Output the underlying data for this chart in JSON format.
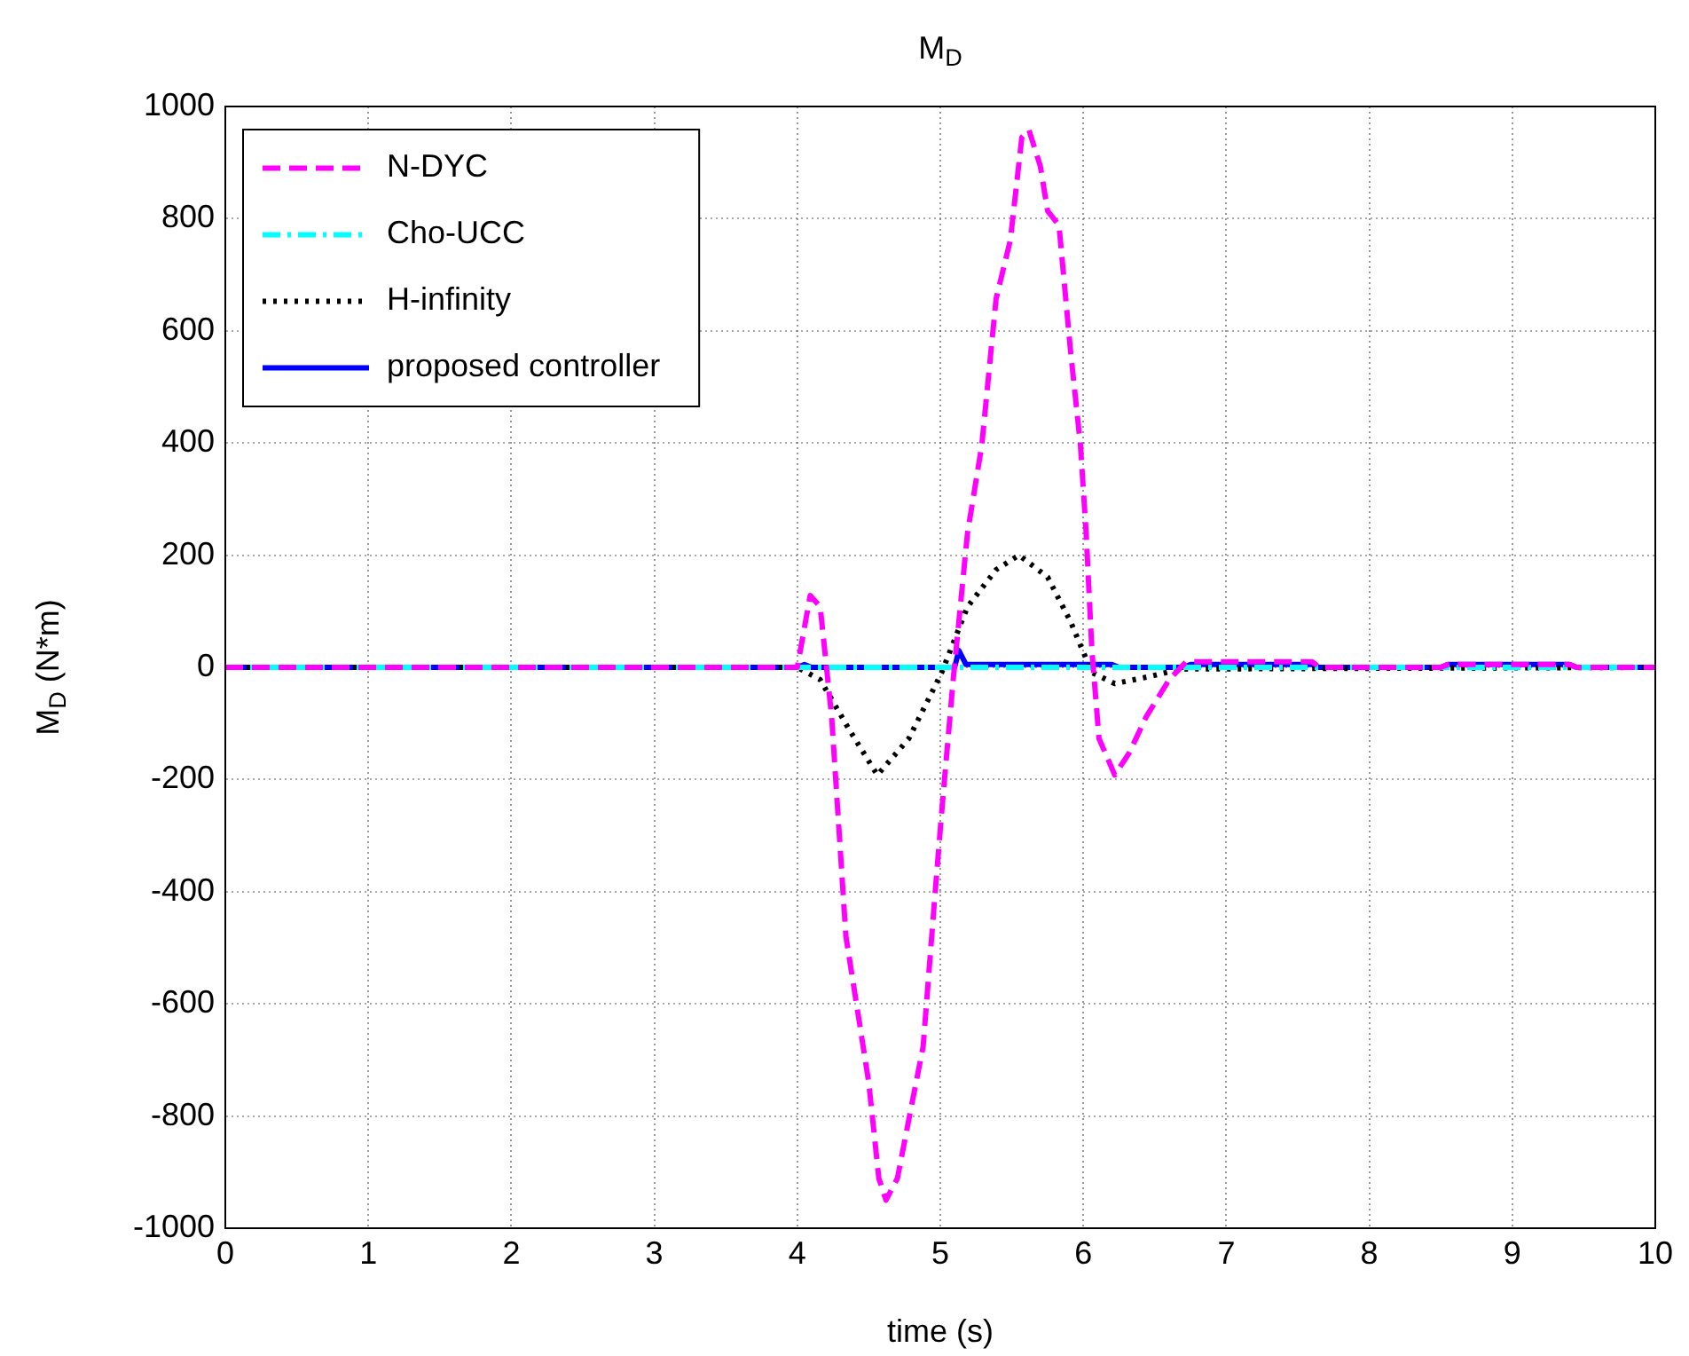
{
  "chart_data": {
    "type": "line",
    "title": "M$_{D}$",
    "xlabel": "time (s)",
    "ylabel": "M$_{D}$ (N*m)",
    "xlim": [
      0,
      10
    ],
    "xticks": [
      0,
      1,
      2,
      3,
      4,
      5,
      6,
      7,
      8,
      9,
      10
    ],
    "ylim": [
      -1000,
      1000
    ],
    "yticks": [
      -1000,
      -800,
      -600,
      -400,
      -200,
      0,
      200,
      400,
      600,
      800,
      1000
    ],
    "grid": true,
    "legend": "top left",
    "marker": "none",
    "series": [
      {
        "name": "N-DYC",
        "color": "#ff00ff",
        "line_style": "dashed",
        "x": [
          0,
          4,
          4.09,
          4.16,
          4.24,
          4.29,
          4.34,
          4.42,
          4.5,
          4.57,
          4.62,
          4.7,
          4.78,
          4.88,
          4.96,
          5.01,
          5.09,
          5.19,
          5.29,
          5.39,
          5.49,
          5.57,
          5.62,
          5.7,
          5.75,
          5.83,
          5.91,
          5.98,
          6.02,
          6.06,
          6.11,
          6.22,
          6.32,
          6.44,
          6.6,
          6.72,
          7.6,
          7.65,
          8.5,
          8.55,
          9.4,
          9.45,
          10
        ],
        "values": [
          0,
          0,
          128,
          108,
          -88,
          -284,
          -480,
          -610,
          -741,
          -911,
          -950,
          -911,
          -806,
          -676,
          -414,
          -257,
          -22,
          239,
          396,
          657,
          762,
          945,
          958,
          893,
          814,
          788,
          566,
          396,
          239,
          30,
          -127,
          -192,
          -153,
          -88,
          -22,
          10,
          10,
          0,
          0,
          5,
          5,
          0,
          0
        ]
      },
      {
        "name": "Cho-UCC",
        "color": "#00ffff",
        "line_style": "dashdot",
        "x": [
          0,
          10
        ],
        "values": [
          0,
          0
        ]
      },
      {
        "name": "H-infinity",
        "color": "#000000",
        "line_style": "dotted",
        "x": [
          0,
          4,
          4.16,
          4.37,
          4.56,
          4.78,
          5.01,
          5.19,
          5.39,
          5.55,
          5.75,
          5.91,
          6.06,
          6.22,
          6.47,
          6.68,
          10
        ],
        "values": [
          0,
          0,
          -22,
          -114,
          -192,
          -127,
          -9,
          108,
          174,
          200,
          161,
          82,
          -9,
          -29,
          -16,
          -3,
          0
        ]
      },
      {
        "name": "proposed controller",
        "color": "#0000ff",
        "line_style": "solid",
        "x": [
          0,
          4,
          4.05,
          4.1,
          5.1,
          5.13,
          5.18,
          6.2,
          6.25,
          6.7,
          6.75,
          7.6,
          7.65,
          8.5,
          8.55,
          9.4,
          9.45,
          10
        ],
        "values": [
          0,
          0,
          5,
          0,
          0,
          30,
          5,
          5,
          0,
          0,
          5,
          5,
          0,
          0,
          5,
          5,
          0,
          0
        ]
      }
    ]
  }
}
